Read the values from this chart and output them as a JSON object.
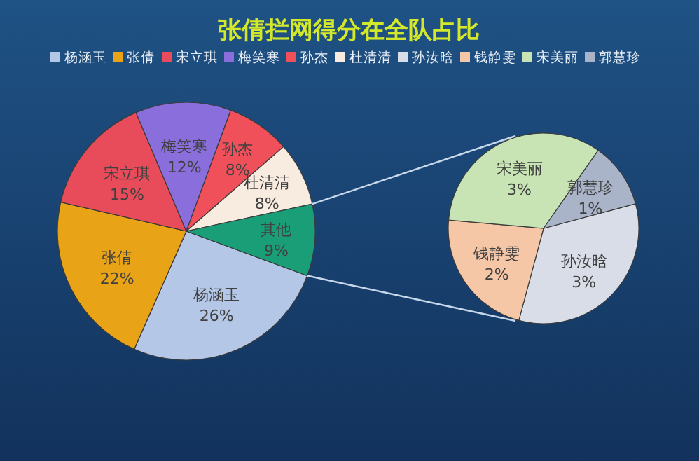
{
  "chart_data": [
    {
      "type": "pie",
      "title": "张倩拦网得分在全队占比",
      "legend": "top",
      "value_labels": [
        "26%",
        "22%",
        "15%",
        "12%",
        "8%",
        "8%",
        "9%"
      ],
      "categories": [
        "杨涵玉",
        "张倩",
        "宋立琪",
        "梅笑寒",
        "孙杰",
        "杜清清",
        "其他"
      ],
      "values": [
        26,
        22,
        15,
        12,
        8,
        8,
        9
      ],
      "colors": [
        "#b4c7e7",
        "#e8a317",
        "#e84c5a",
        "#8a6fdc",
        "#f0505a",
        "#f8ebe0",
        "#1a9e78"
      ]
    },
    {
      "type": "pie",
      "legend": "top",
      "value_labels": [
        "3%",
        "2%",
        "3%",
        "1%"
      ],
      "categories": [
        "孙汝晗",
        "钱静雯",
        "宋美丽",
        "郭慧珍"
      ],
      "values": [
        3,
        2,
        3,
        1
      ],
      "colors": [
        "#d9dde8",
        "#f6c7a6",
        "#c8e4b4",
        "#aab4c8"
      ]
    }
  ]
}
